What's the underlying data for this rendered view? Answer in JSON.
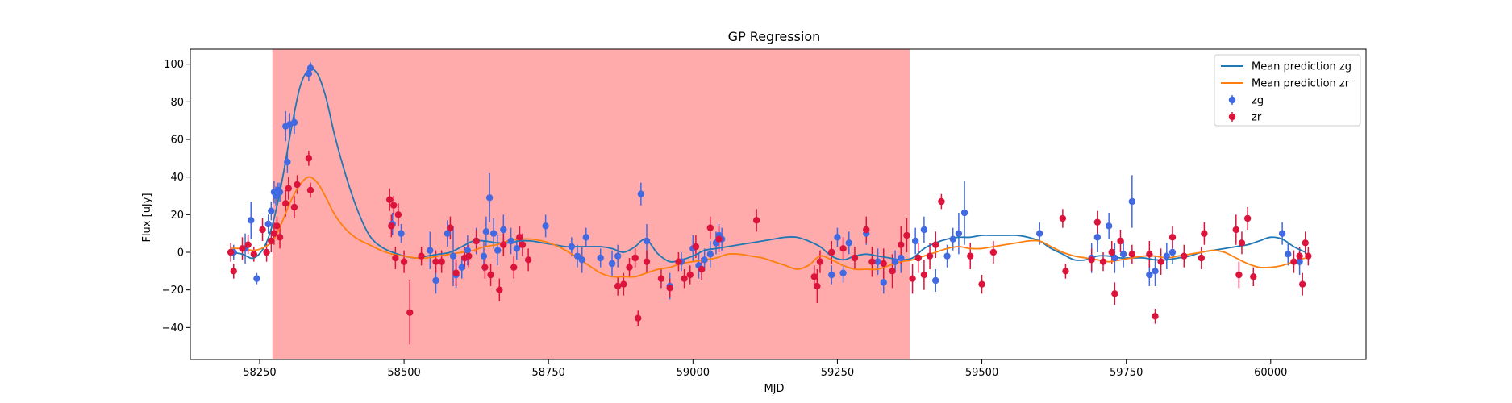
{
  "chart_data": {
    "type": "scatter",
    "title": "GP Regression",
    "xlabel": "MJD",
    "ylabel": "Flux [uJy]",
    "xlim": [
      58130,
      60165
    ],
    "ylim": [
      -57,
      108
    ],
    "xticks": [
      58250,
      58500,
      58750,
      59000,
      59250,
      59500,
      59750,
      60000
    ],
    "yticks": [
      -40,
      -20,
      0,
      20,
      40,
      60,
      80,
      100
    ],
    "grid": false,
    "legend_position": "top-right",
    "shaded_region": {
      "x_start": 58272,
      "x_end": 59375,
      "color": "#ff0000",
      "opacity": 0.33
    },
    "colors": {
      "zg_line": "#1f77b4",
      "zr_line": "#ff7f0e",
      "zg_points": "#4169e1",
      "zr_points": "#dc143c"
    },
    "legend": [
      {
        "label": "Mean prediction zg",
        "kind": "line",
        "color": "#1f77b4"
      },
      {
        "label": "Mean prediction zr",
        "kind": "line",
        "color": "#ff7f0e"
      },
      {
        "label": "zg",
        "kind": "point",
        "color": "#4169e1"
      },
      {
        "label": "zr",
        "kind": "point",
        "color": "#dc143c"
      }
    ],
    "lines": [
      {
        "name": "Mean prediction zg",
        "color": "#1f77b4",
        "x": [
          58200,
          58220,
          58240,
          58260,
          58275,
          58290,
          58305,
          58320,
          58335,
          58350,
          58365,
          58380,
          58400,
          58420,
          58440,
          58460,
          58480,
          58500,
          58520,
          58540,
          58560,
          58580,
          58600,
          58620,
          58640,
          58660,
          58680,
          58700,
          58720,
          58740,
          58760,
          58780,
          58800,
          58820,
          58840,
          58860,
          58880,
          58900,
          58910,
          58920,
          58930,
          58940,
          58960,
          58980,
          59000,
          59020,
          59040,
          59060,
          59080,
          59100,
          59120,
          59140,
          59160,
          59180,
          59200,
          59220,
          59240,
          59260,
          59280,
          59300,
          59320,
          59340,
          59360,
          59380,
          59400,
          59420,
          59440,
          59460,
          59480,
          59500,
          59520,
          59540,
          59560,
          59580,
          59600,
          59620,
          59640,
          59660,
          59680,
          59700,
          59720,
          59740,
          59760,
          59780,
          59800,
          59820,
          59840,
          59860,
          59880,
          59900,
          59920,
          59940,
          59960,
          59980,
          60000,
          60020,
          60040,
          60060
        ],
        "y": [
          0,
          -1,
          -3,
          4,
          18,
          40,
          66,
          88,
          97,
          95,
          82,
          62,
          40,
          22,
          9,
          3,
          0,
          -2,
          -3,
          -2,
          -1,
          0,
          3,
          6,
          6,
          5,
          5,
          6,
          6,
          5,
          4,
          3,
          3,
          3,
          3,
          2,
          0,
          3,
          6,
          7,
          3,
          -1,
          -5,
          -4,
          -2,
          1,
          2,
          3,
          4,
          5,
          6,
          7,
          8,
          8,
          6,
          3,
          -2,
          -4,
          -2,
          -1,
          -2,
          -3,
          -4,
          -3,
          2,
          5,
          7,
          8,
          8,
          9,
          9,
          9,
          9,
          8,
          6,
          2,
          -1,
          -4,
          -4,
          -2,
          -2,
          -3,
          -3,
          -3,
          -4,
          -4,
          -3,
          -2,
          0,
          1,
          2,
          3,
          4,
          6,
          8,
          7,
          3,
          0
        ]
      },
      {
        "name": "Mean prediction zr",
        "color": "#ff7f0e",
        "x": [
          58200,
          58220,
          58240,
          58260,
          58275,
          58290,
          58305,
          58320,
          58335,
          58350,
          58365,
          58380,
          58400,
          58420,
          58440,
          58460,
          58480,
          58500,
          58520,
          58540,
          58560,
          58580,
          58600,
          58620,
          58640,
          58660,
          58680,
          58700,
          58720,
          58740,
          58760,
          58780,
          58800,
          58820,
          58840,
          58860,
          58880,
          58900,
          58920,
          58940,
          58960,
          58980,
          59000,
          59020,
          59040,
          59060,
          59080,
          59100,
          59120,
          59140,
          59160,
          59180,
          59200,
          59220,
          59240,
          59260,
          59280,
          59300,
          59320,
          59340,
          59360,
          59380,
          59400,
          59420,
          59440,
          59460,
          59480,
          59500,
          59520,
          59540,
          59560,
          59580,
          59600,
          59620,
          59640,
          59660,
          59680,
          59700,
          59720,
          59740,
          59760,
          59780,
          59800,
          59820,
          59840,
          59860,
          59880,
          59900,
          59920,
          59940,
          59960,
          59980,
          60000,
          60020,
          60040,
          60060
        ],
        "y": [
          2,
          2,
          1,
          3,
          7,
          17,
          28,
          36,
          40,
          37,
          29,
          20,
          12,
          7,
          4,
          1,
          -1,
          -2,
          -3,
          -3,
          -2,
          -1,
          0,
          1,
          3,
          4,
          6,
          7,
          7,
          6,
          4,
          1,
          -3,
          -7,
          -11,
          -13,
          -13,
          -13,
          -11,
          -9,
          -8,
          -6,
          -5,
          -4,
          -3,
          -1,
          -1,
          -2,
          -3,
          -5,
          -7,
          -9,
          -7,
          -2,
          -4,
          -7,
          -9,
          -9,
          -9,
          -7,
          -5,
          -4,
          -2,
          0,
          2,
          3,
          2,
          2,
          3,
          4,
          5,
          6,
          6,
          3,
          0,
          -2,
          -3,
          -4,
          -5,
          -4,
          -3,
          -2,
          -2,
          -3,
          -2,
          -1,
          0,
          1,
          0,
          -3,
          -6,
          -8,
          -8,
          -7,
          -5,
          -3
        ]
      }
    ],
    "series": [
      {
        "name": "zg",
        "color": "#4169e1",
        "x": [
          58205,
          58225,
          58235,
          58245,
          58265,
          58270,
          58275,
          58278,
          58282,
          58285,
          58295,
          58298,
          58302,
          58310,
          58335,
          58338,
          58480,
          58495,
          58545,
          58555,
          58575,
          58585,
          58590,
          58600,
          58610,
          58625,
          58638,
          58642,
          58648,
          58655,
          58662,
          58672,
          58685,
          58695,
          58700,
          58745,
          58790,
          58800,
          58808,
          58815,
          58840,
          58860,
          58870,
          58910,
          58920,
          58960,
          58980,
          59000,
          59010,
          59020,
          59030,
          59040,
          59045,
          59050,
          59240,
          59250,
          59260,
          59270,
          59300,
          59320,
          59330,
          59350,
          59360,
          59385,
          59400,
          59420,
          59440,
          59450,
          59460,
          59470,
          59600,
          59690,
          59700,
          59720,
          59730,
          59745,
          59760,
          59790,
          59800,
          59820,
          59830,
          60020,
          60030,
          60050
        ],
        "y": [
          0,
          2,
          17,
          -14,
          15,
          22,
          32,
          30,
          33,
          32,
          67,
          48,
          68,
          69,
          95,
          98,
          15,
          10,
          1,
          -15,
          10,
          -2,
          -12,
          -8,
          1,
          6,
          -2,
          11,
          29,
          10,
          1,
          12,
          6,
          2,
          8,
          14,
          3,
          -2,
          -4,
          8,
          -3,
          -6,
          -2,
          31,
          6,
          -18,
          -5,
          2,
          -7,
          -4,
          -1,
          5,
          9,
          7,
          -12,
          8,
          -11,
          5,
          10,
          -5,
          -16,
          -5,
          -3,
          6,
          12,
          -15,
          -2,
          7,
          10,
          21,
          10,
          -3,
          8,
          14,
          -3,
          -1,
          27,
          -12,
          -10,
          -2,
          0,
          10,
          -1,
          -5
        ],
        "err": [
          4,
          8,
          10,
          3,
          5,
          5,
          6,
          5,
          4,
          5,
          8,
          6,
          6,
          6,
          4,
          3,
          6,
          5,
          10,
          7,
          7,
          16,
          7,
          6,
          8,
          7,
          8,
          8,
          13,
          8,
          8,
          8,
          7,
          6,
          6,
          6,
          5,
          6,
          7,
          5,
          5,
          7,
          6,
          6,
          9,
          7,
          5,
          7,
          7,
          6,
          7,
          6,
          6,
          6,
          5,
          5,
          5,
          6,
          6,
          7,
          6,
          6,
          8,
          7,
          7,
          6,
          6,
          6,
          11,
          17,
          6,
          8,
          8,
          7,
          8,
          7,
          14,
          6,
          8,
          7,
          6,
          6,
          6,
          7
        ]
      },
      {
        "name": "zr",
        "color": "#dc143c",
        "x": [
          58200,
          58205,
          58220,
          58230,
          58240,
          58255,
          58262,
          58270,
          58275,
          58280,
          58285,
          58295,
          58300,
          58310,
          58315,
          58335,
          58338,
          58475,
          58478,
          58482,
          58485,
          58490,
          58500,
          58510,
          58530,
          58555,
          58565,
          58580,
          58590,
          58605,
          58612,
          58625,
          58640,
          58650,
          58665,
          58672,
          58690,
          58700,
          58705,
          58715,
          58870,
          58880,
          58890,
          58900,
          58905,
          58920,
          58945,
          58960,
          58975,
          58985,
          58995,
          59005,
          59015,
          59030,
          59045,
          59110,
          59210,
          59215,
          59220,
          59240,
          59260,
          59280,
          59300,
          59310,
          59330,
          59345,
          59360,
          59370,
          59380,
          59390,
          59400,
          59410,
          59420,
          59430,
          59480,
          59500,
          59520,
          59640,
          59645,
          59690,
          59700,
          59710,
          59725,
          59730,
          59740,
          59760,
          59790,
          59800,
          59810,
          59830,
          59850,
          59880,
          59885,
          59940,
          59945,
          59950,
          59960,
          59970,
          60040,
          60050,
          60055,
          60060,
          60065
        ],
        "y": [
          0,
          -10,
          2,
          4,
          -1,
          12,
          0,
          6,
          10,
          14,
          8,
          26,
          34,
          24,
          36,
          50,
          33,
          28,
          14,
          25,
          -3,
          20,
          -5,
          -32,
          -2,
          -5,
          -5,
          13,
          -11,
          -3,
          -2,
          6,
          -8,
          -12,
          -20,
          4,
          -8,
          8,
          4,
          -4,
          -18,
          -17,
          -8,
          -3,
          -35,
          -5,
          -14,
          -19,
          -5,
          -14,
          -12,
          3,
          -9,
          13,
          7,
          17,
          -13,
          -18,
          -5,
          0,
          2,
          -3,
          12,
          -5,
          -6,
          -10,
          4,
          9,
          -14,
          -3,
          -12,
          -2,
          4,
          27,
          -2,
          -17,
          0,
          18,
          -10,
          -4,
          16,
          -5,
          0,
          -22,
          6,
          -1,
          -1,
          -34,
          -5,
          8,
          -2,
          -3,
          10,
          12,
          -12,
          5,
          18,
          -13,
          -5,
          -2,
          -17,
          5,
          -2
        ],
        "err": [
          5,
          4,
          6,
          5,
          4,
          6,
          5,
          6,
          6,
          5,
          6,
          7,
          6,
          6,
          5,
          4,
          4,
          6,
          6,
          5,
          6,
          6,
          6,
          17,
          5,
          6,
          6,
          6,
          7,
          6,
          6,
          6,
          6,
          6,
          6,
          6,
          6,
          6,
          6,
          6,
          5,
          6,
          5,
          5,
          4,
          6,
          5,
          5,
          5,
          5,
          5,
          6,
          6,
          6,
          7,
          6,
          6,
          9,
          6,
          6,
          6,
          6,
          7,
          8,
          8,
          9,
          10,
          9,
          8,
          8,
          8,
          7,
          7,
          4,
          7,
          5,
          6,
          5,
          4,
          6,
          6,
          5,
          6,
          6,
          6,
          5,
          7,
          4,
          7,
          6,
          6,
          6,
          6,
          8,
          7,
          6,
          6,
          5,
          6,
          5,
          6,
          6,
          5
        ]
      }
    ]
  }
}
